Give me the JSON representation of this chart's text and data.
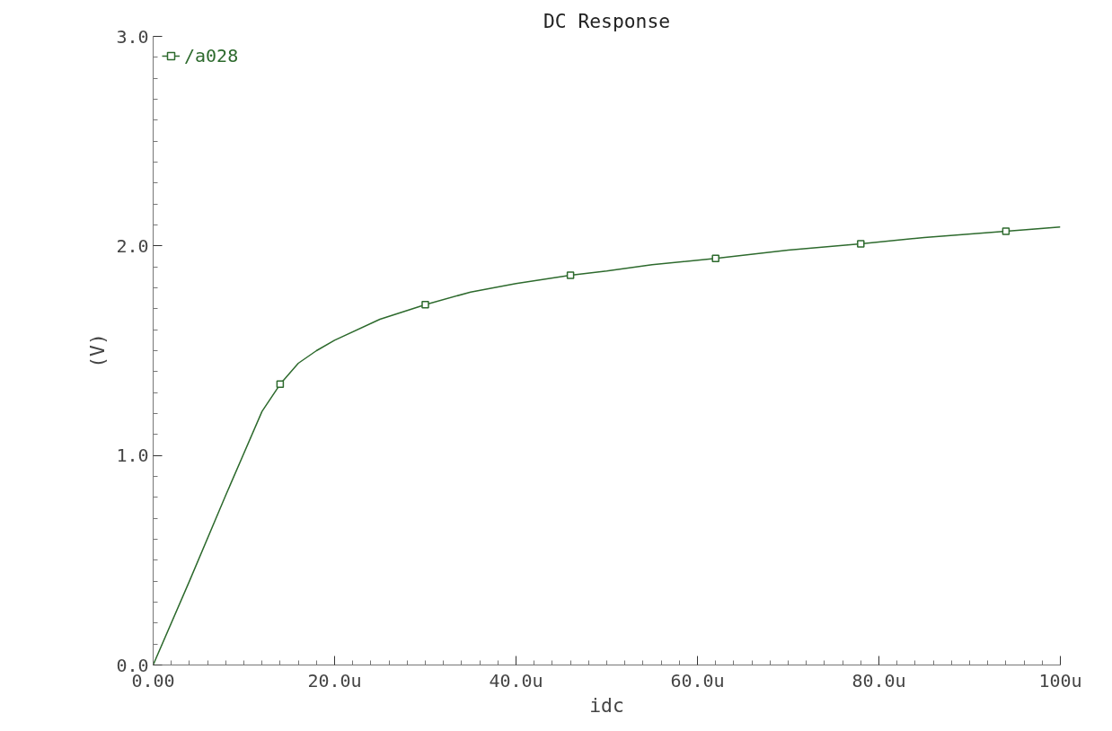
{
  "chart_data": {
    "type": "line",
    "title": "DC Response",
    "xlabel": "idc",
    "ylabel": "(V)",
    "legend": "top left",
    "grid": false,
    "xlim": [
      0,
      100
    ],
    "ylim": [
      0,
      3
    ],
    "xticks": [
      {
        "value": 0,
        "label": "0.00"
      },
      {
        "value": 20,
        "label": "20.0u"
      },
      {
        "value": 40,
        "label": "40.0u"
      },
      {
        "value": 60,
        "label": "60.0u"
      },
      {
        "value": 80,
        "label": "80.0u"
      },
      {
        "value": 100,
        "label": "100u"
      }
    ],
    "yticks": [
      {
        "value": 0,
        "label": "0.0"
      },
      {
        "value": 1,
        "label": "1.0"
      },
      {
        "value": 2,
        "label": "2.0"
      },
      {
        "value": 3,
        "label": "3.0"
      }
    ],
    "series": [
      {
        "name": "/a028",
        "color": "#2d6a2d",
        "marker": "none",
        "x": [
          0,
          4,
          8,
          12,
          14,
          16,
          18,
          20,
          25,
          30,
          35,
          40,
          46,
          50,
          55,
          62,
          70,
          78,
          85,
          94,
          100
        ],
        "values": [
          0,
          0.4,
          0.81,
          1.21,
          1.34,
          1.44,
          1.5,
          1.55,
          1.65,
          1.72,
          1.78,
          1.82,
          1.86,
          1.88,
          1.91,
          1.94,
          1.98,
          2.01,
          2.04,
          2.07,
          2.09
        ]
      },
      {
        "type": "scatter",
        "color": "#2d6a2d",
        "marker": "square",
        "x": [
          14,
          30,
          46,
          62,
          78,
          94
        ],
        "values": [
          1.34,
          1.72,
          1.86,
          1.94,
          2.01,
          2.07
        ]
      }
    ]
  }
}
